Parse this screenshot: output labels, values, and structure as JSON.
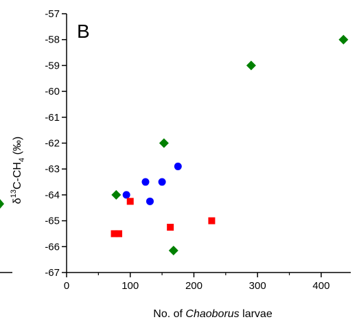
{
  "chart_data": {
    "type": "scatter",
    "panel_label": "B",
    "xlabel_prefix": "No. of ",
    "xlabel_italic": "Chaoborus",
    "xlabel_suffix": " larvae",
    "ylabel_delta": "δ",
    "ylabel_sup": "13",
    "ylabel_mid": "C-CH",
    "ylabel_sub": "4",
    "ylabel_unit": " (‰)",
    "xlim": [
      0,
      440
    ],
    "ylim": [
      -67,
      -57
    ],
    "x_ticks": [
      0,
      100,
      200,
      300,
      400
    ],
    "x_tick_labels": [
      "0",
      "100",
      "200",
      "300",
      "400"
    ],
    "y_ticks": [
      -57,
      -58,
      -59,
      -60,
      -61,
      -62,
      -63,
      -64,
      -65,
      -66,
      -67
    ],
    "y_tick_labels": [
      "-57",
      "-58",
      "-59",
      "-60",
      "-61",
      "-62",
      "-63",
      "-64",
      "-65",
      "-66",
      "-67"
    ],
    "series": [
      {
        "marker": "diamond",
        "color": "#008000",
        "points": [
          [
            78,
            -64.0
          ],
          [
            153,
            -62.0
          ],
          [
            168,
            -66.15
          ],
          [
            290,
            -59.0
          ],
          [
            435,
            -58.0
          ]
        ]
      },
      {
        "marker": "circle",
        "color": "#0000ff",
        "points": [
          [
            94,
            -64.0
          ],
          [
            124,
            -63.5
          ],
          [
            131,
            -64.25
          ],
          [
            150,
            -63.5
          ],
          [
            175,
            -62.9
          ]
        ]
      },
      {
        "marker": "square",
        "color": "#ff0000",
        "points": [
          [
            75,
            -65.5
          ],
          [
            82,
            -65.5
          ],
          [
            100,
            -64.25
          ],
          [
            163,
            -65.25
          ],
          [
            228,
            -65.0
          ]
        ]
      }
    ],
    "grid": false,
    "legend": "none"
  }
}
